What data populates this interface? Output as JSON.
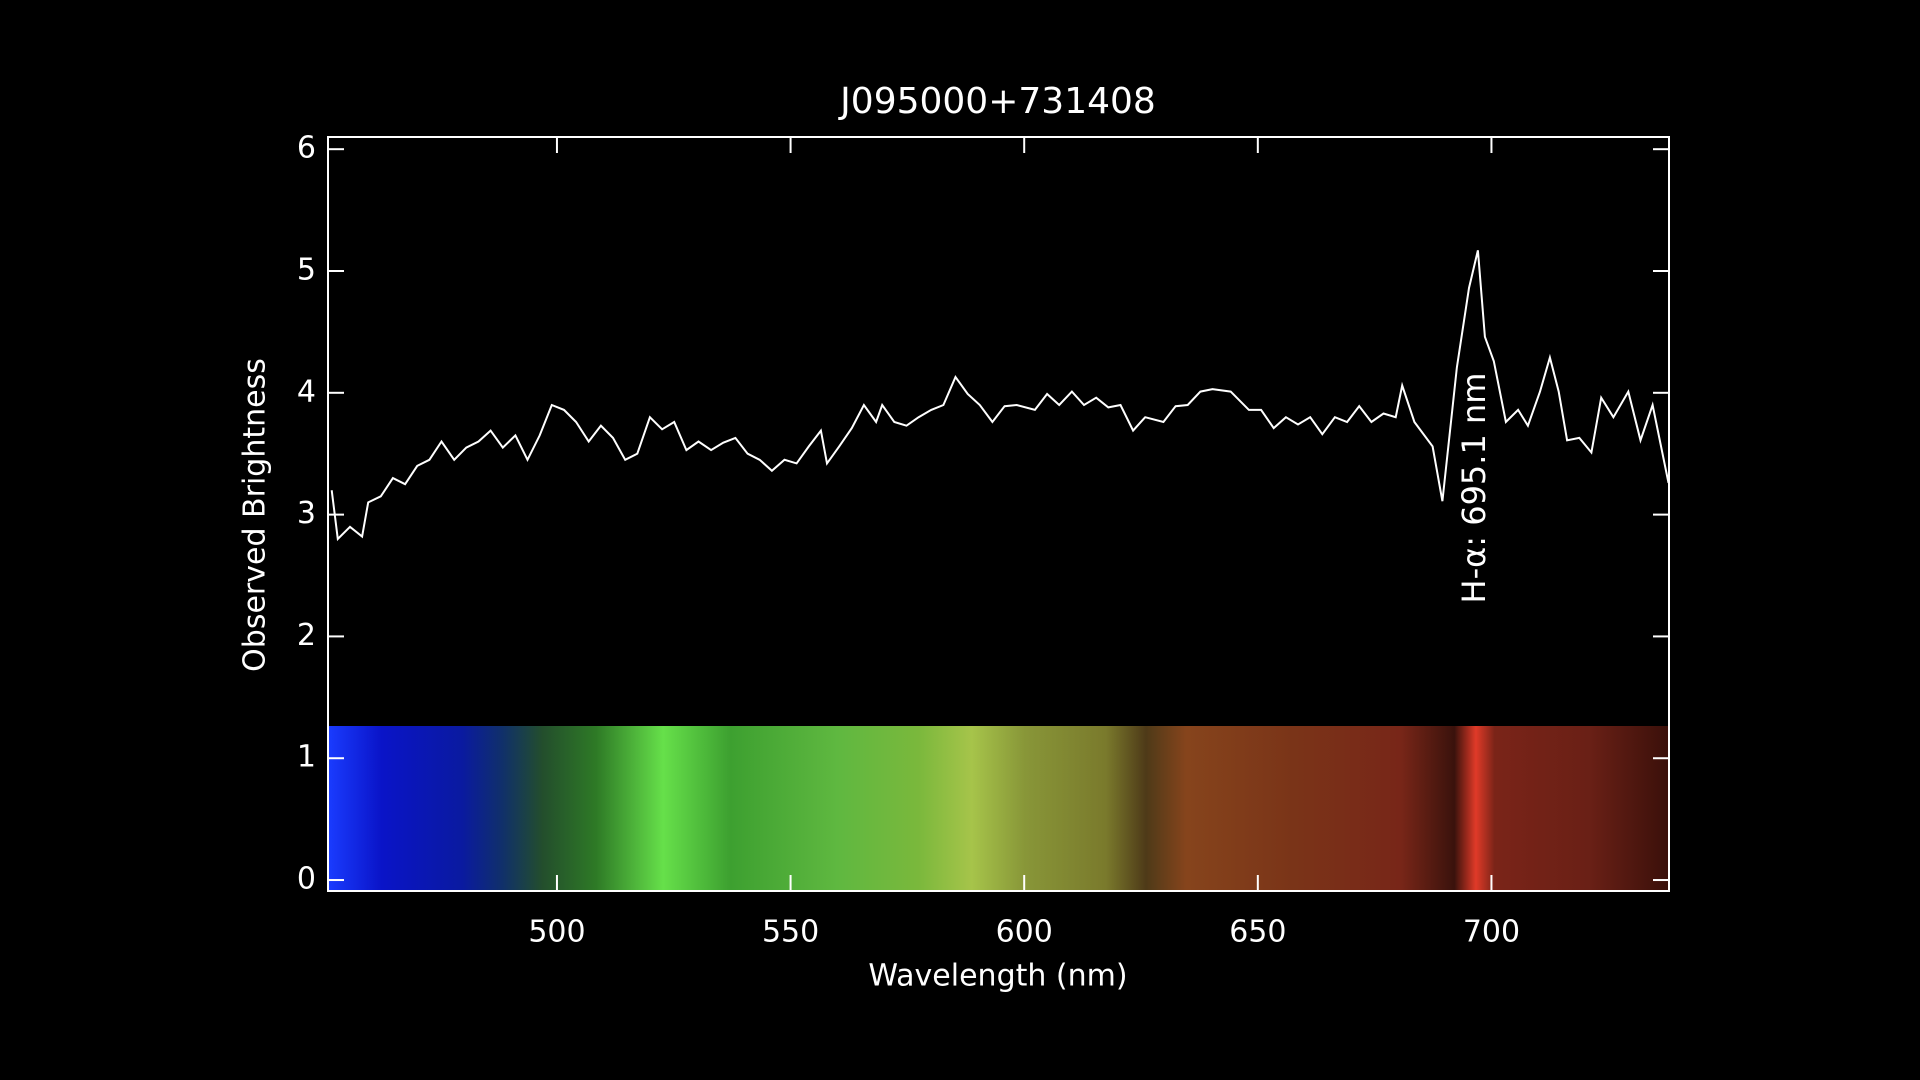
{
  "chart_data": {
    "type": "line",
    "title": "J095000+731408",
    "xlabel": "Wavelength (nm)",
    "ylabel": "Observed Brightness",
    "annotation": "H-α: 695.1 nm",
    "xlim": [
      451,
      738
    ],
    "ylim": [
      -0.09,
      6.1
    ],
    "xticks": [
      500,
      550,
      600,
      650,
      700
    ],
    "yticks": [
      0,
      1,
      2,
      3,
      4,
      5,
      6
    ],
    "series": [
      {
        "color": "#ffffff",
        "x": [
          451.8,
          453.1,
          455.7,
          458.3,
          459.6,
          462.3,
          464.9,
          467.5,
          470.1,
          472.7,
          475.3,
          478.0,
          480.6,
          483.2,
          485.8,
          488.4,
          491.1,
          493.7,
          496.3,
          498.9,
          501.5,
          504.1,
          506.8,
          509.4,
          512.0,
          514.6,
          517.2,
          519.9,
          522.5,
          525.1,
          527.7,
          530.3,
          533.0,
          535.6,
          538.2,
          540.8,
          543.4,
          546.0,
          548.7,
          551.3,
          553.9,
          556.5,
          557.8,
          560.4,
          563.1,
          565.7,
          568.3,
          569.6,
          572.2,
          574.8,
          577.4,
          580.1,
          582.7,
          585.3,
          587.9,
          590.5,
          593.2,
          595.8,
          598.4,
          602.3,
          604.9,
          607.5,
          610.2,
          612.8,
          615.4,
          618.0,
          620.6,
          623.3,
          625.9,
          629.8,
          632.4,
          635.0,
          637.7,
          640.3,
          644.2,
          648.1,
          650.7,
          653.4,
          656.0,
          658.6,
          661.2,
          663.8,
          666.5,
          669.1,
          671.7,
          674.3,
          676.9,
          679.5,
          680.9,
          683.5,
          687.4,
          689.5,
          692.6,
          695.2,
          697.1,
          698.6,
          700.5,
          703.1,
          705.7,
          707.8,
          710.4,
          712.5,
          714.4,
          716.2,
          718.8,
          721.4,
          723.5,
          726.1,
          729.3,
          731.9,
          734.5,
          737.9
        ],
        "values": [
          3.2,
          2.8,
          2.9,
          2.82,
          3.1,
          3.15,
          3.3,
          3.25,
          3.4,
          3.45,
          3.6,
          3.45,
          3.55,
          3.6,
          3.69,
          3.55,
          3.65,
          3.45,
          3.65,
          3.9,
          3.86,
          3.76,
          3.6,
          3.73,
          3.63,
          3.45,
          3.5,
          3.8,
          3.7,
          3.76,
          3.53,
          3.6,
          3.53,
          3.59,
          3.63,
          3.5,
          3.45,
          3.36,
          3.45,
          3.42,
          3.56,
          3.69,
          3.42,
          3.56,
          3.71,
          3.9,
          3.76,
          3.9,
          3.76,
          3.73,
          3.8,
          3.86,
          3.9,
          4.13,
          3.99,
          3.9,
          3.76,
          3.89,
          3.9,
          3.86,
          3.99,
          3.9,
          4.01,
          3.9,
          3.96,
          3.88,
          3.9,
          3.69,
          3.8,
          3.76,
          3.89,
          3.9,
          4.01,
          4.03,
          4.01,
          3.86,
          3.86,
          3.71,
          3.8,
          3.74,
          3.8,
          3.66,
          3.8,
          3.76,
          3.89,
          3.76,
          3.83,
          3.8,
          4.06,
          3.76,
          3.56,
          3.11,
          4.21,
          4.86,
          5.17,
          4.46,
          4.26,
          3.76,
          3.86,
          3.73,
          4.01,
          4.29,
          4.01,
          3.61,
          3.63,
          3.51,
          3.96,
          3.8,
          4.01,
          3.61,
          3.9,
          3.26
        ]
      }
    ]
  }
}
